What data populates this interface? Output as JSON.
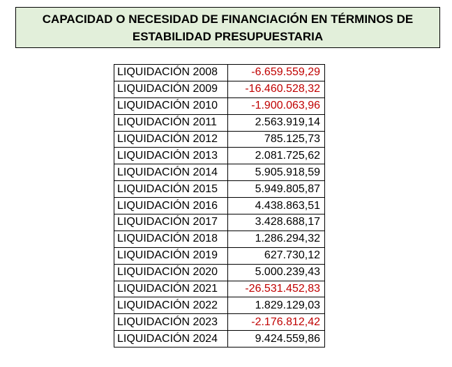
{
  "header": {
    "title_lines": [
      "CAPACIDAD O NECESIDAD DE FINANCIACIÓN EN TÉRMINOS DE",
      "ESTABILIDAD PRESUPUESTARIA"
    ],
    "background": "#e2efda"
  },
  "table": {
    "negative_color": "#c00000",
    "text_color": "#000000",
    "rows": [
      [
        "LIQUIDACIÓN 2008",
        "-6.659.559,29"
      ],
      [
        "LIQUIDACIÓN 2009",
        "-16.460.528,32"
      ],
      [
        "LIQUIDACIÓN 2010",
        "-1.900.063,96"
      ],
      [
        "LIQUIDACIÓN 2011",
        "2.563.919,14"
      ],
      [
        "LIQUIDACIÓN 2012",
        "785.125,73"
      ],
      [
        "LIQUIDACIÓN 2013",
        "2.081.725,62"
      ],
      [
        "LIQUIDACIÓN 2014",
        "5.905.918,59"
      ],
      [
        "LIQUIDACIÓN 2015",
        "5.949.805,87"
      ],
      [
        "LIQUIDACIÓN 2016",
        "4.438.863,51"
      ],
      [
        "LIQUIDACIÓN 2017",
        "3.428.688,17"
      ],
      [
        "LIQUIDACIÓN 2018",
        "1.286.294,32"
      ],
      [
        "LIQUIDACIÓN 2019",
        "627.730,12"
      ],
      [
        "LIQUIDACIÓN 2020",
        "5.000.239,43"
      ],
      [
        "LIQUIDACIÓN 2021",
        "-26.531.452,83"
      ],
      [
        "LIQUIDACIÓN 2022",
        "1.829.129,03"
      ],
      [
        "LIQUIDACIÓN 2023",
        "-2.176.812,42"
      ],
      [
        "LIQUIDACIÓN 2024",
        "9.424.559,86"
      ]
    ]
  }
}
